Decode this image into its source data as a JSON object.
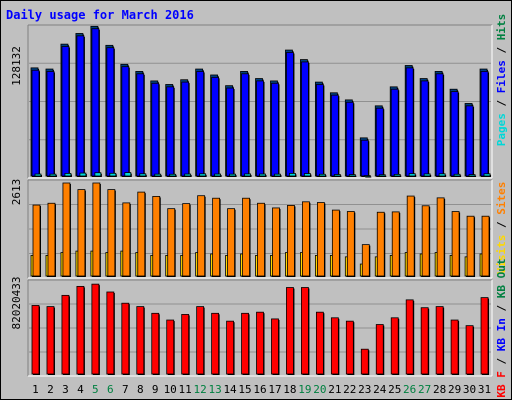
{
  "title": "Daily usage for March 2016",
  "colors": {
    "background": "#c0c0c0",
    "title": "#0000ff",
    "pages": "#00d8d8",
    "files": "#0000ff",
    "hits": "#008040",
    "visits": "#ffd800",
    "sites": "#ff8000",
    "kb_f": "#ff0000",
    "kb_in": "#0000ff",
    "kb_out": "#008040",
    "weekend_day": "#008040",
    "weekday": "#000000"
  },
  "chart_data": [
    {
      "type": "bar",
      "name": "hits-files-pages",
      "max_label": "128132",
      "legend": [
        "Pages",
        "Files",
        "Hits"
      ],
      "ylim": [
        0,
        128132
      ],
      "categories": [
        "1",
        "2",
        "3",
        "4",
        "5",
        "6",
        "7",
        "8",
        "9",
        "10",
        "11",
        "12",
        "13",
        "14",
        "15",
        "16",
        "17",
        "18",
        "19",
        "20",
        "21",
        "22",
        "23",
        "24",
        "25",
        "26",
        "27",
        "28",
        "29",
        "30",
        "31"
      ],
      "series": [
        {
          "name": "Hits",
          "values": [
            92000,
            91000,
            112000,
            121000,
            127000,
            111000,
            95000,
            89000,
            81000,
            78000,
            82000,
            91000,
            86000,
            77000,
            89000,
            83000,
            81000,
            107000,
            99000,
            80000,
            71000,
            65000,
            33000,
            60000,
            76000,
            94000,
            83000,
            89000,
            74000,
            62000,
            91000
          ]
        },
        {
          "name": "Files",
          "values": [
            90000,
            89000,
            110000,
            119000,
            125000,
            109000,
            93000,
            87000,
            79000,
            76000,
            80000,
            89000,
            84000,
            75000,
            87000,
            81000,
            79000,
            105000,
            97000,
            78000,
            69000,
            63000,
            31000,
            58000,
            74000,
            92000,
            81000,
            87000,
            72000,
            60000,
            89000
          ]
        },
        {
          "name": "Pages",
          "values": [
            2500,
            2400,
            3000,
            3300,
            3600,
            3100,
            3700,
            2700,
            2400,
            2300,
            2500,
            2700,
            2500,
            2400,
            2600,
            2500,
            2400,
            3000,
            2900,
            2300,
            2100,
            2000,
            1200,
            1900,
            2200,
            2800,
            2600,
            2700,
            2300,
            2000,
            2700
          ]
        }
      ]
    },
    {
      "type": "bar",
      "name": "sites-visits",
      "max_label": "2613",
      "legend": [
        "Visits",
        "Sites"
      ],
      "ylim": [
        0,
        2613
      ],
      "categories": [
        "1",
        "2",
        "3",
        "4",
        "5",
        "6",
        "7",
        "8",
        "9",
        "10",
        "11",
        "12",
        "13",
        "14",
        "15",
        "16",
        "17",
        "18",
        "19",
        "20",
        "21",
        "22",
        "23",
        "24",
        "25",
        "26",
        "27",
        "28",
        "29",
        "30",
        "31"
      ],
      "series": [
        {
          "name": "Visits",
          "values": [
            150,
            150,
            170,
            180,
            180,
            170,
            180,
            170,
            150,
            150,
            150,
            170,
            160,
            150,
            160,
            150,
            150,
            170,
            170,
            150,
            150,
            140,
            90,
            140,
            150,
            170,
            160,
            170,
            150,
            140,
            160
          ]
        },
        {
          "name": "Sites",
          "values": [
            2000,
            2050,
            2613,
            2430,
            2613,
            2430,
            2060,
            2360,
            2240,
            1900,
            2040,
            2260,
            2190,
            1900,
            2190,
            2050,
            1920,
            1990,
            2090,
            2070,
            1860,
            1820,
            900,
            1800,
            1810,
            2250,
            1980,
            2200,
            1820,
            1690,
            1690
          ]
        }
      ]
    },
    {
      "type": "bar",
      "name": "kbytes",
      "max_label": "82020433",
      "legend": [
        "KB F",
        "KB In",
        "KB Out"
      ],
      "ylim": [
        0,
        82020433
      ],
      "categories": [
        "1",
        "2",
        "3",
        "4",
        "5",
        "6",
        "7",
        "8",
        "9",
        "10",
        "11",
        "12",
        "13",
        "14",
        "15",
        "16",
        "17",
        "18",
        "19",
        "20",
        "21",
        "22",
        "23",
        "24",
        "25",
        "26",
        "27",
        "28",
        "29",
        "30",
        "31"
      ],
      "series": [
        {
          "name": "KB F",
          "values": [
            62000000,
            61000000,
            71000000,
            79000000,
            81000000,
            74000000,
            64000000,
            61000000,
            55000000,
            49000000,
            54000000,
            61000000,
            55000000,
            48000000,
            55000000,
            56000000,
            50000000,
            78000000,
            78000000,
            56000000,
            51000000,
            48000000,
            23000000,
            45000000,
            51000000,
            67000000,
            60000000,
            61000000,
            49000000,
            44000000,
            69000000
          ]
        }
      ]
    }
  ]
}
